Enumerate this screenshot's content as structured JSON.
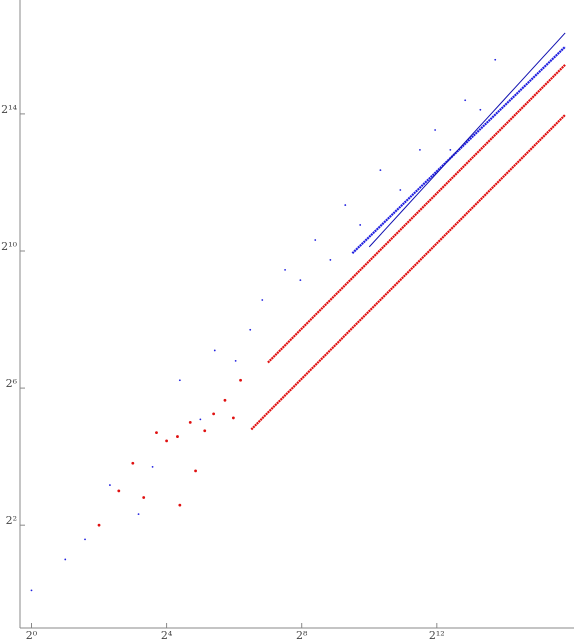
{
  "chart_data": {
    "type": "scatter",
    "log_base": 2,
    "xlog": true,
    "ylog": true,
    "xlim": [
      0.79,
      63000
    ],
    "ylim": [
      0.5,
      164000
    ],
    "xticks": [
      {
        "value": 1,
        "label": "2⁰"
      },
      {
        "value": 16,
        "label": "2⁴"
      },
      {
        "value": 256,
        "label": "2⁸"
      },
      {
        "value": 4096,
        "label": "2¹²"
      }
    ],
    "yticks": [
      {
        "value": 4,
        "label": "2²"
      },
      {
        "value": 64,
        "label": "2⁶"
      },
      {
        "value": 1024,
        "label": "2¹⁰"
      },
      {
        "value": 16384,
        "label": "2¹⁴"
      }
    ],
    "series": [
      {
        "color": "#2020e0",
        "mode": "points",
        "x": [
          1,
          2,
          3,
          5,
          9,
          12,
          21,
          32,
          43,
          66,
          89,
          114,
          182,
          249,
          338,
          461,
          626,
          850,
          1287,
          1937,
          2896,
          3956,
          5405,
          7330,
          10010,
          13580
        ],
        "values": [
          1.07,
          2,
          3,
          9,
          5,
          13,
          75,
          34,
          137,
          111,
          208,
          380,
          699,
          568,
          1278,
          855,
          2592,
          1734,
          5256,
          3516,
          7910,
          11826,
          7910,
          21600,
          17800,
          49000
        ]
      },
      {
        "color": "#e01010",
        "mode": "points",
        "x": [
          4,
          6,
          8,
          10,
          13,
          16,
          20,
          21,
          26,
          29,
          35,
          42,
          53,
          63,
          73
        ],
        "values": [
          4,
          8,
          14,
          7,
          26,
          22,
          24,
          6,
          32,
          12,
          27,
          38,
          50,
          35,
          75
        ]
      },
      {
        "color": "#e01010",
        "mode": "line",
        "x": [
          91,
          128,
          181,
          256,
          362,
          512,
          724,
          1024,
          1448,
          2048,
          2896,
          4096,
          5793,
          8192,
          11585,
          16384,
          23170,
          32768,
          46341,
          57052
        ],
        "values": [
          27.7,
          39,
          54.9,
          77.3,
          108.8,
          153,
          216,
          304,
          428,
          602,
          848,
          1194,
          1681,
          2367,
          3332,
          4692,
          6606,
          9301,
          13096,
          16083
        ]
      },
      {
        "color": "#e01010",
        "mode": "line",
        "x": [
          128,
          181,
          256,
          362,
          512,
          724,
          1024,
          1448,
          2048,
          2896,
          4096,
          5793,
          8192,
          11585,
          16384,
          23170,
          32768,
          46341,
          57052
        ],
        "values": [
          107.3,
          151,
          213,
          300,
          422,
          594,
          836,
          1177,
          1658,
          2334,
          3286,
          4627,
          6515,
          9173,
          12916,
          18186,
          25606,
          36053,
          44270
        ]
      },
      {
        "color": "#2020e0",
        "mode": "line",
        "x": [
          724,
          1024,
          1448,
          2048,
          2896,
          4096,
          5793,
          8192,
          11585,
          16384,
          23170,
          32768,
          46341,
          57052
        ],
        "values": [
          978,
          1362,
          1898,
          2644,
          3683,
          5130,
          7146,
          9955,
          13867,
          19317,
          26909,
          37484,
          52215,
          63700
        ]
      },
      {
        "color": "#1010b0",
        "mode": "thin-line",
        "x": [
          1024,
          1448,
          2048,
          2896,
          4096,
          5793,
          8192,
          11585,
          16384,
          23170,
          32768,
          46341,
          57052
        ],
        "values": [
          1113,
          1616,
          2347,
          3407,
          4947,
          7183,
          10430,
          15144,
          21989,
          31928,
          46360,
          67315,
          84211
        ]
      }
    ]
  }
}
